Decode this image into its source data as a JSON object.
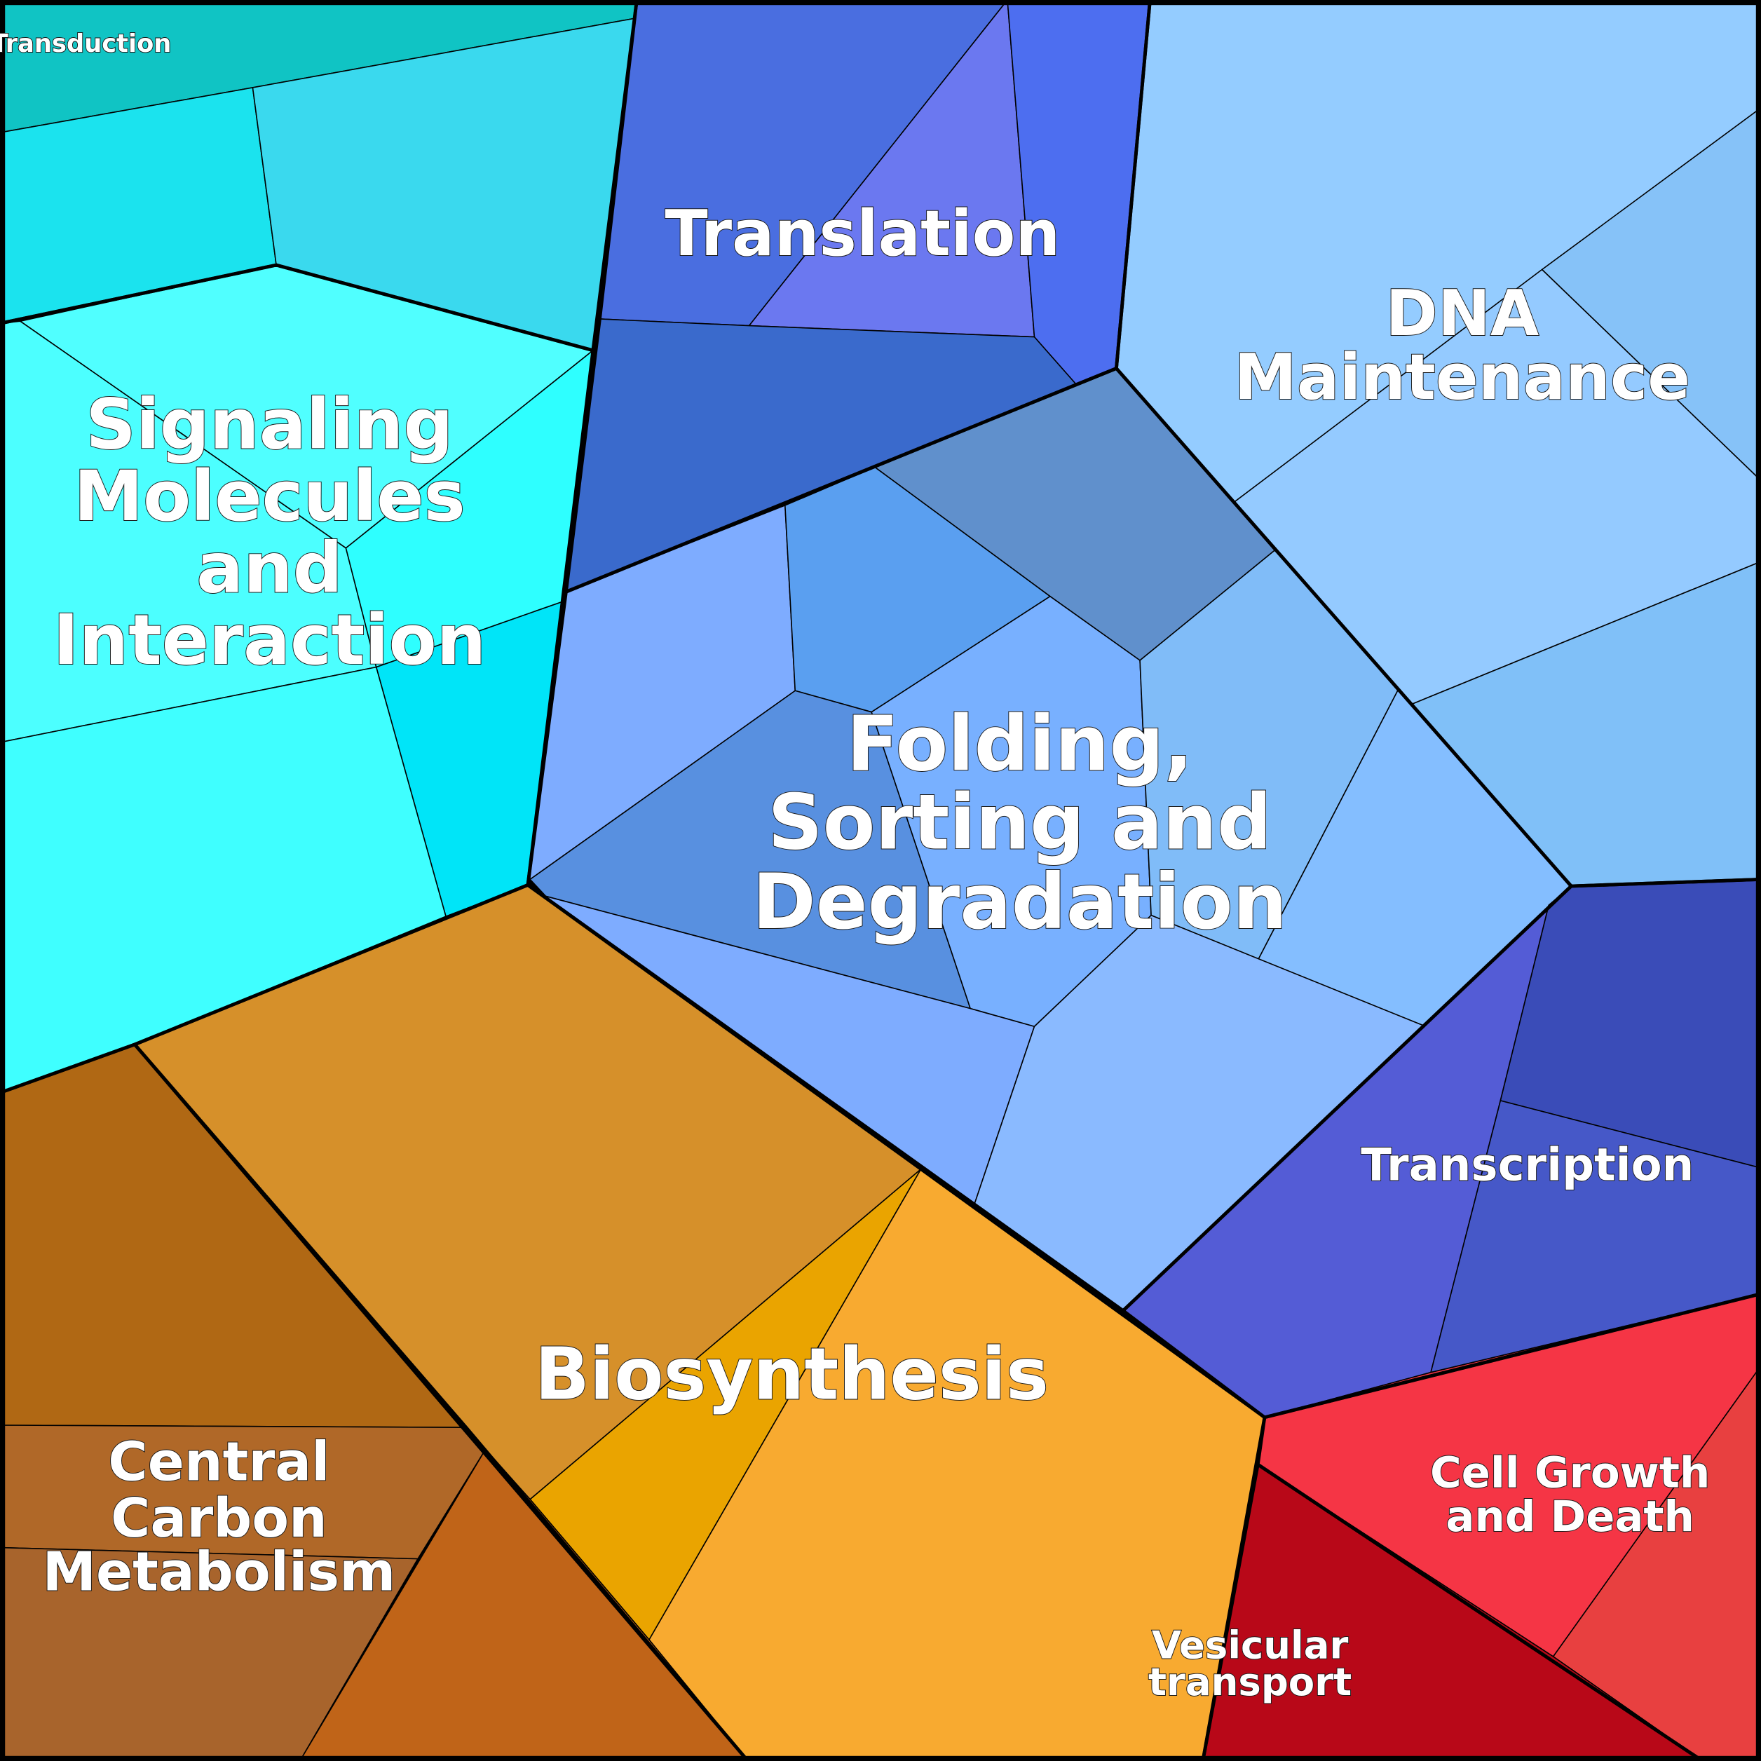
{
  "groups": [
    {
      "label": "Signal Transduction",
      "cell_colors": [
        "#10c4c4",
        "#1be3ee",
        "#3ad9ee"
      ]
    },
    {
      "label": "Signaling Molecules and Interaction",
      "cell_colors": [
        "#50ffff",
        "#4cffff",
        "#2effff",
        "#00e5f8",
        "#3fffff"
      ]
    },
    {
      "label": "Translation",
      "cell_colors": [
        "#4a6ee0",
        "#6b78f0",
        "#4d6ef0",
        "#3a6acc"
      ]
    },
    {
      "label": "DNA Maintenance",
      "cell_colors": [
        "#94ccff",
        "#86c2f8",
        "#94caff",
        "#80c0f8"
      ]
    },
    {
      "label": "Folding, Sorting and Degradation",
      "cell_colors": [
        "#6090cc",
        "#7eacff",
        "#5a9ff0",
        "#5890e0",
        "#78b0ff",
        "#80bcf8",
        "#84beff",
        "#7eacff",
        "#8abaff"
      ]
    },
    {
      "label": "Transcription",
      "cell_colors": [
        "#545cd6",
        "#3a4cb8",
        "#4658c8"
      ]
    },
    {
      "label": "Cell Growth and Death",
      "cell_colors": [
        "#f53545",
        "#e84040"
      ]
    },
    {
      "label": "Vesicular transport",
      "cell_colors": [
        "#b80818"
      ]
    },
    {
      "label": "Biosynthesis",
      "cell_colors": [
        "#d6902a",
        "#eaa400",
        "#f8aa30"
      ]
    },
    {
      "label": "Central Carbon Metabolism",
      "cell_colors": [
        "#b06814",
        "#b06828",
        "#a8642c",
        "#c06418"
      ]
    }
  ],
  "label_lines": {
    "signal_transduction": [
      "Signal Transduction"
    ],
    "signaling": [
      "Signaling",
      "Molecules",
      "and",
      "Interaction"
    ],
    "translation": [
      "Translation"
    ],
    "dna": [
      "DNA",
      "Maintenance"
    ],
    "folding": [
      "Folding,",
      "Sorting and",
      "Degradation"
    ],
    "transcription": [
      "Transcription"
    ],
    "cell_growth": [
      "Cell Growth",
      "and Death"
    ],
    "vesicular": [
      "Vesicular",
      "transport"
    ],
    "biosynthesis": [
      "Biosynthesis"
    ],
    "central_carbon": [
      "Central",
      "Carbon",
      "Metabolism"
    ]
  }
}
